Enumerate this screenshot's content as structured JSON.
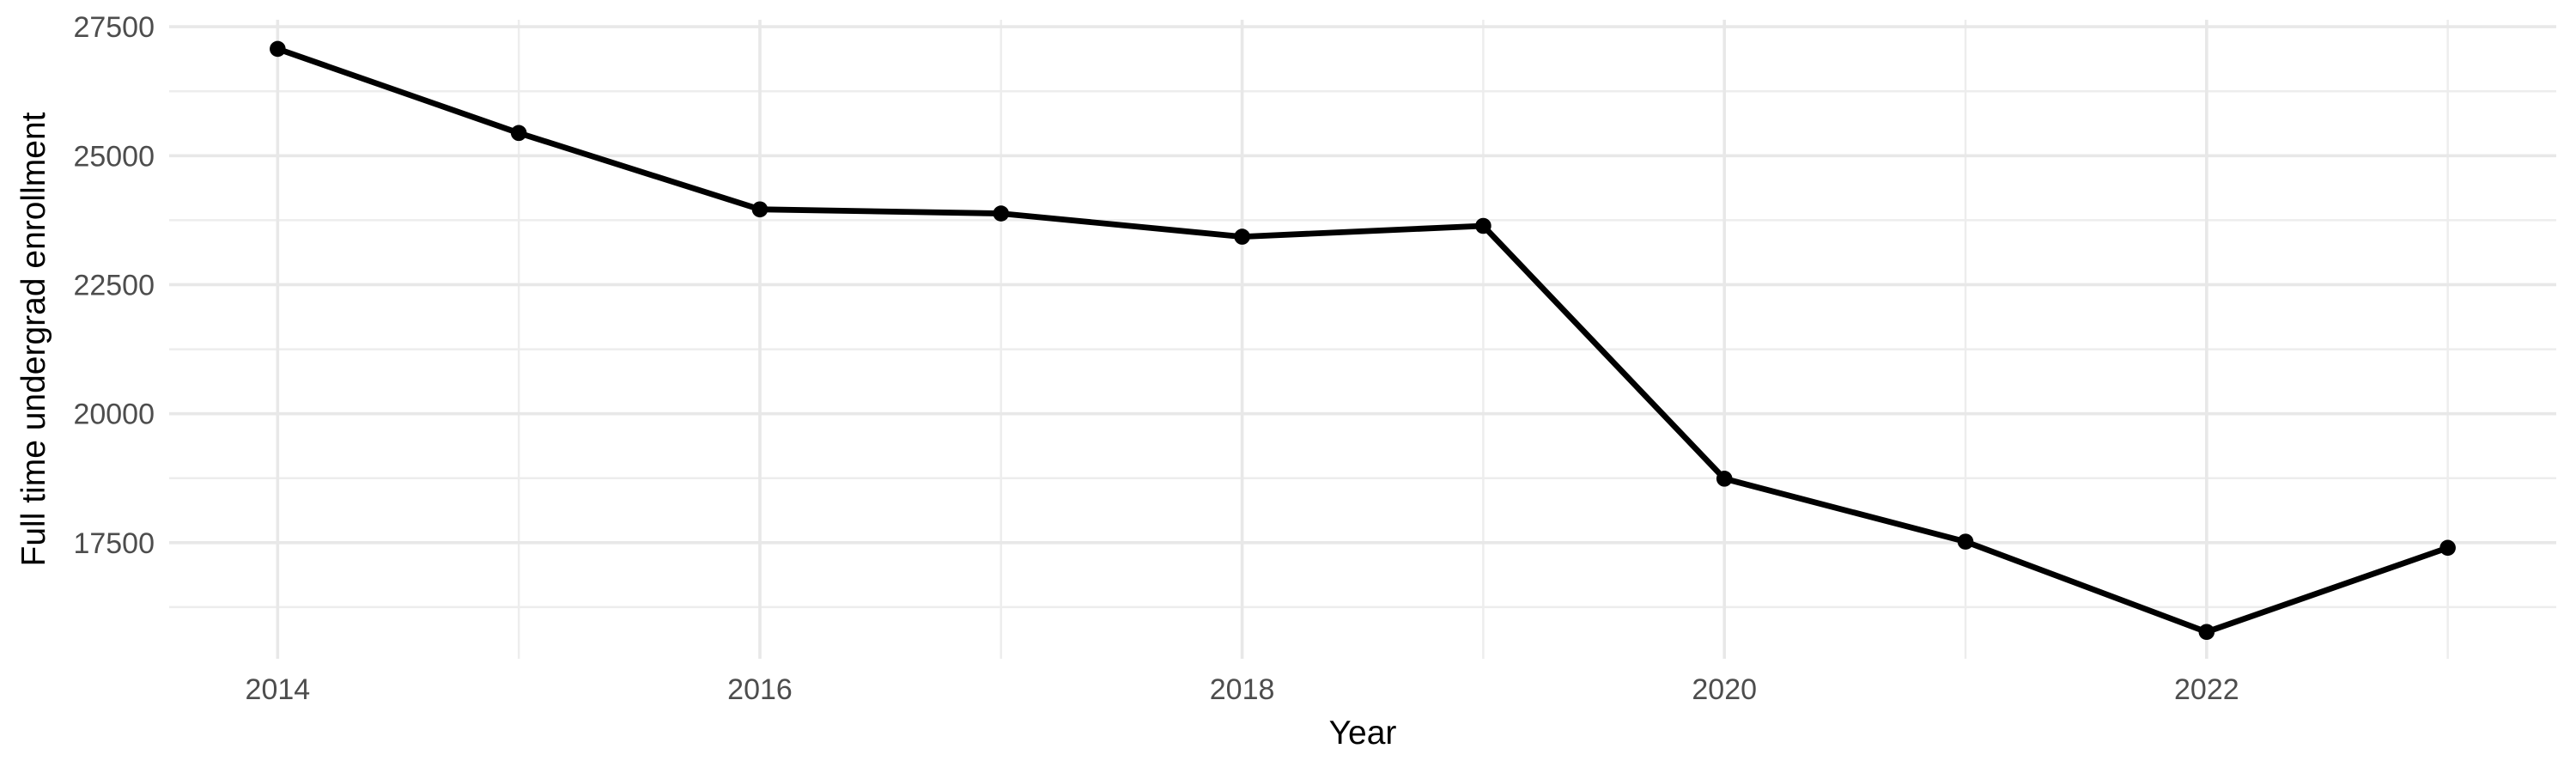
{
  "chart_data": {
    "type": "line",
    "title": "",
    "xlabel": "Year",
    "ylabel": "Full time undergrad enrollment",
    "x": [
      2014,
      2015,
      2016,
      2017,
      2018,
      2019,
      2020,
      2021,
      2022,
      2023
    ],
    "values": [
      27070,
      25440,
      23960,
      23880,
      23430,
      23640,
      18740,
      17520,
      15770,
      17400
    ],
    "x_major_ticks": [
      2014,
      2016,
      2018,
      2020,
      2022
    ],
    "x_minor_gridlines": [
      2015,
      2017,
      2019,
      2021,
      2023
    ],
    "y_major_ticks": [
      17500,
      20000,
      22500,
      25000,
      27500
    ],
    "y_minor_gridlines": [
      16250,
      18750,
      21250,
      23750,
      26250
    ],
    "xlim": [
      2013.55,
      2023.45
    ],
    "ylim": [
      15250,
      27635
    ],
    "grid": "major+minor",
    "legend": "none",
    "style": {
      "line_color": "#000000",
      "point_color": "#000000",
      "major_grid_color": "#e8e8e8",
      "minor_grid_color": "#ededed",
      "tick_label_color": "#4d4d4d",
      "axis_title_color": "#000000",
      "background": "#ffffff"
    }
  }
}
